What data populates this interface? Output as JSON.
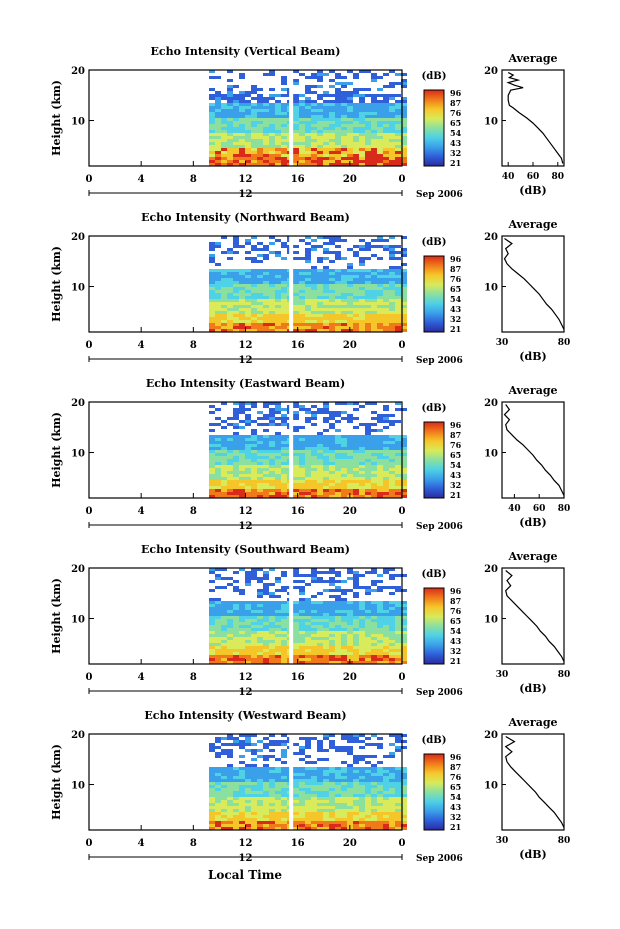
{
  "figure": {
    "xlabel": "Local Time"
  },
  "panel_titles": [
    "Echo Intensity (Vertical Beam)",
    "Echo Intensity (Northward Beam)",
    "Echo Intensity (Eastward Beam)",
    "Echo Intensity (Southward Beam)",
    "Echo Intensity (Westward Beam)"
  ],
  "chart_data": [
    {
      "type": "heatmap",
      "title": "Echo Intensity (Vertical Beam)",
      "ylabel": "Height (km)",
      "x_ticks": [
        "0",
        "4",
        "8",
        "12",
        "16",
        "20",
        "0"
      ],
      "xlim": [
        0,
        24
      ],
      "y_ticks": [
        "10",
        "20"
      ],
      "ylim": [
        1,
        20
      ],
      "date_label": "12",
      "date_suffix": "Sep 2006",
      "colorbar": {
        "unit": "(dB)",
        "ticks": [
          "96",
          "87",
          "76",
          "65",
          "54",
          "43",
          "32",
          "21"
        ],
        "colors": [
          "#2b2b9e",
          "#2f5fd9",
          "#3aa0ea",
          "#4fd1e6",
          "#8be0a0",
          "#d9ea5a",
          "#f5c62a",
          "#f07a1a",
          "#d92b1a"
        ]
      },
      "profile": {
        "title": "Average",
        "xlabel": "(dB)",
        "x_ticks": [
          "40",
          "60",
          "80"
        ],
        "xlim": [
          35,
          85
        ],
        "y_ticks": [
          "10",
          "20"
        ],
        "ylim": [
          1,
          20
        ],
        "heights": [
          1.5,
          2.5,
          3.5,
          4.5,
          5.5,
          6.5,
          7.5,
          8.5,
          9.5,
          10.5,
          11.5,
          12.5,
          13,
          14,
          15,
          16,
          16.5,
          17,
          17.5,
          18,
          18.5,
          19,
          19.5
        ],
        "values": [
          84,
          83,
          80,
          77,
          74,
          71,
          68,
          64,
          60,
          55,
          49,
          44,
          41,
          40,
          40,
          42,
          52,
          45,
          40,
          48,
          41,
          44,
          40
        ]
      }
    },
    {
      "type": "heatmap",
      "title": "Echo Intensity (Northward Beam)",
      "ylabel": "Height (km)",
      "x_ticks": [
        "0",
        "4",
        "8",
        "12",
        "16",
        "20",
        "0"
      ],
      "xlim": [
        0,
        24
      ],
      "y_ticks": [
        "10",
        "20"
      ],
      "ylim": [
        1,
        20
      ],
      "date_label": "12",
      "date_suffix": "Sep 2006",
      "colorbar": {
        "unit": "(dB)",
        "ticks": [
          "96",
          "87",
          "76",
          "65",
          "54",
          "43",
          "32",
          "21"
        ],
        "colors": [
          "#2b2b9e",
          "#2f5fd9",
          "#3aa0ea",
          "#4fd1e6",
          "#8be0a0",
          "#d9ea5a",
          "#f5c62a",
          "#f07a1a",
          "#d92b1a"
        ]
      },
      "profile": {
        "title": "Average",
        "xlabel": "(dB)",
        "x_ticks": [
          "30",
          "80"
        ],
        "xlim": [
          30,
          80
        ],
        "y_ticks": [
          "10",
          "20"
        ],
        "ylim": [
          1,
          20
        ],
        "heights": [
          1.5,
          2.5,
          3.5,
          4.5,
          5.5,
          6.5,
          7.5,
          8.5,
          9.5,
          10.5,
          11.5,
          12.5,
          13.5,
          14.5,
          15.5,
          16.5,
          17.5,
          18.5,
          19.5
        ],
        "values": [
          80,
          78,
          76,
          73,
          70,
          66,
          63,
          60,
          56,
          52,
          48,
          43,
          38,
          34,
          32,
          35,
          33,
          38,
          32
        ]
      }
    },
    {
      "type": "heatmap",
      "title": "Echo Intensity (Eastward Beam)",
      "ylabel": "Height (km)",
      "x_ticks": [
        "0",
        "4",
        "8",
        "12",
        "16",
        "20",
        "0"
      ],
      "xlim": [
        0,
        24
      ],
      "y_ticks": [
        "10",
        "20"
      ],
      "ylim": [
        1,
        20
      ],
      "date_label": "12",
      "date_suffix": "Sep 2006",
      "colorbar": {
        "unit": "(dB)",
        "ticks": [
          "96",
          "87",
          "76",
          "65",
          "54",
          "43",
          "32",
          "21"
        ],
        "colors": [
          "#2b2b9e",
          "#2f5fd9",
          "#3aa0ea",
          "#4fd1e6",
          "#8be0a0",
          "#d9ea5a",
          "#f5c62a",
          "#f07a1a",
          "#d92b1a"
        ]
      },
      "profile": {
        "title": "Average",
        "xlabel": "(dB)",
        "x_ticks": [
          "40",
          "60",
          "80"
        ],
        "xlim": [
          30,
          80
        ],
        "y_ticks": [
          "10",
          "20"
        ],
        "ylim": [
          1,
          20
        ],
        "heights": [
          1.5,
          2.5,
          3.5,
          4.5,
          5.5,
          6.5,
          7.5,
          8.5,
          9.5,
          10.5,
          11.5,
          12.5,
          13.5,
          14.5,
          15.5,
          16.5,
          17.5,
          18.5,
          19.5
        ],
        "values": [
          80,
          78,
          76,
          72,
          69,
          65,
          62,
          58,
          55,
          51,
          47,
          42,
          38,
          34,
          33,
          36,
          32,
          36,
          33
        ]
      }
    },
    {
      "type": "heatmap",
      "title": "Echo Intensity (Southward Beam)",
      "ylabel": "Height (km)",
      "x_ticks": [
        "0",
        "4",
        "8",
        "12",
        "16",
        "20",
        "0"
      ],
      "xlim": [
        0,
        24
      ],
      "y_ticks": [
        "10",
        "20"
      ],
      "ylim": [
        1,
        20
      ],
      "date_label": "12",
      "date_suffix": "Sep 2006",
      "colorbar": {
        "unit": "(dB)",
        "ticks": [
          "96",
          "87",
          "76",
          "65",
          "54",
          "43",
          "32",
          "21"
        ],
        "colors": [
          "#2b2b9e",
          "#2f5fd9",
          "#3aa0ea",
          "#4fd1e6",
          "#8be0a0",
          "#d9ea5a",
          "#f5c62a",
          "#f07a1a",
          "#d92b1a"
        ]
      },
      "profile": {
        "title": "Average",
        "xlabel": "(dB)",
        "x_ticks": [
          "30",
          "80"
        ],
        "xlim": [
          30,
          80
        ],
        "y_ticks": [
          "10",
          "20"
        ],
        "ylim": [
          1,
          20
        ],
        "heights": [
          1.5,
          2.5,
          3.5,
          4.5,
          5.5,
          6.5,
          7.5,
          8.5,
          9.5,
          10.5,
          11.5,
          12.5,
          13.5,
          14.5,
          15.5,
          16.5,
          17.5,
          18.5,
          19.5
        ],
        "values": [
          80,
          78,
          75,
          72,
          68,
          65,
          61,
          58,
          54,
          50,
          46,
          42,
          38,
          34,
          33,
          37,
          34,
          38,
          33
        ]
      }
    },
    {
      "type": "heatmap",
      "title": "Echo Intensity (Westward Beam)",
      "ylabel": "Height (km)",
      "x_ticks": [
        "0",
        "4",
        "8",
        "12",
        "16",
        "20",
        "0"
      ],
      "xlim": [
        0,
        24
      ],
      "y_ticks": [
        "10",
        "20"
      ],
      "ylim": [
        1,
        20
      ],
      "date_label": "12",
      "date_suffix": "Sep 2006",
      "colorbar": {
        "unit": "(dB)",
        "ticks": [
          "96",
          "87",
          "76",
          "65",
          "54",
          "43",
          "32",
          "21"
        ],
        "colors": [
          "#2b2b9e",
          "#2f5fd9",
          "#3aa0ea",
          "#4fd1e6",
          "#8be0a0",
          "#d9ea5a",
          "#f5c62a",
          "#f07a1a",
          "#d92b1a"
        ]
      },
      "profile": {
        "title": "Average",
        "xlabel": "(dB)",
        "x_ticks": [
          "30",
          "80"
        ],
        "xlim": [
          30,
          80
        ],
        "y_ticks": [
          "10",
          "20"
        ],
        "ylim": [
          1,
          20
        ],
        "heights": [
          1.5,
          2.5,
          3.5,
          4.5,
          5.5,
          6.5,
          7.5,
          8.5,
          9.5,
          10.5,
          11.5,
          12.5,
          13.5,
          14.5,
          15.5,
          16.5,
          17.5,
          18.5,
          19.5
        ],
        "values": [
          80,
          78,
          75,
          72,
          68,
          64,
          60,
          57,
          53,
          49,
          45,
          41,
          37,
          34,
          33,
          38,
          33,
          40,
          33
        ]
      }
    }
  ]
}
